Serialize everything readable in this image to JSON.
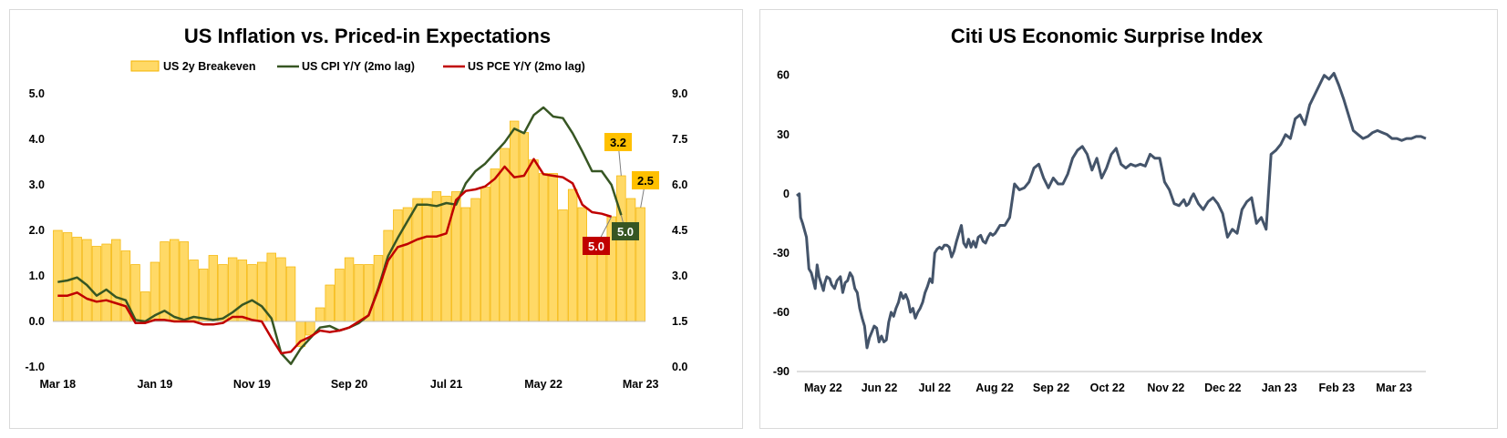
{
  "colors": {
    "bar_fill": "#FFD966",
    "bar_edge": "#F4B400",
    "cpi_line": "#375623",
    "pce_line": "#C00000",
    "surprise_line": "#44546A",
    "callout_be": "#FFC000",
    "callout_cpi": "#375623",
    "callout_pce": "#C00000"
  },
  "chart_data": [
    {
      "type": "bar",
      "title": "US Inflation vs. Priced-in Expectations",
      "legend": {
        "placement": "top",
        "entries": [
          "US 2y Breakeven",
          "US CPI Y/Y (2mo lag)",
          "US PCE Y/Y (2mo lag)"
        ]
      },
      "x_tick_labels": [
        "Mar 18",
        "Jan 19",
        "Nov 19",
        "Sep 20",
        "Jul 21",
        "May 22",
        "Mar 23"
      ],
      "y_left": {
        "lim": [
          -1.0,
          5.0
        ],
        "ticks": [
          "5.0",
          "4.0",
          "3.0",
          "2.0",
          "1.0",
          "0.0",
          "-1.0"
        ]
      },
      "y_right": {
        "lim": [
          0.0,
          9.0
        ],
        "ticks": [
          "9.0",
          "7.5",
          "6.0",
          "4.5",
          "3.0",
          "1.5",
          "0.0"
        ]
      },
      "series": [
        {
          "name": "US 2y Breakeven",
          "type": "bar",
          "axis": "left",
          "values": [
            2.0,
            1.95,
            1.85,
            1.8,
            1.65,
            1.7,
            1.8,
            1.55,
            1.25,
            0.65,
            1.3,
            1.75,
            1.8,
            1.75,
            1.35,
            1.15,
            1.45,
            1.25,
            1.4,
            1.35,
            1.25,
            1.3,
            1.5,
            1.4,
            1.2,
            -0.55,
            -0.3,
            0.3,
            0.8,
            1.15,
            1.4,
            1.25,
            1.25,
            1.45,
            2.0,
            2.45,
            2.5,
            2.7,
            2.7,
            2.85,
            2.75,
            2.85,
            2.5,
            2.7,
            2.95,
            3.35,
            3.8,
            4.4,
            4.15,
            3.55,
            3.25,
            3.25,
            2.45,
            2.9,
            2.5,
            1.65,
            1.65,
            2.3,
            3.2,
            2.7,
            2.5
          ]
        },
        {
          "name": "US CPI Y/Y (2mo lag)",
          "type": "line",
          "axis": "right",
          "values": [
            2.8,
            2.85,
            2.95,
            2.7,
            2.35,
            2.55,
            2.3,
            2.2,
            1.55,
            1.5,
            1.7,
            1.85,
            1.65,
            1.55,
            1.65,
            1.6,
            1.55,
            1.6,
            1.8,
            2.05,
            2.2,
            2.0,
            1.6,
            0.45,
            0.1,
            0.6,
            0.95,
            1.3,
            1.35,
            1.2,
            1.3,
            1.45,
            1.7,
            2.6,
            3.65,
            4.25,
            4.8,
            5.35,
            5.35,
            5.3,
            5.4,
            5.35,
            6.05,
            6.45,
            6.7,
            7.05,
            7.4,
            7.85,
            7.7,
            8.3,
            8.55,
            8.25,
            8.2,
            7.7,
            7.1,
            6.45,
            6.45,
            6.0,
            5.0
          ]
        },
        {
          "name": "US PCE Y/Y (2mo lag)",
          "type": "line",
          "axis": "right",
          "values": [
            2.35,
            2.35,
            2.45,
            2.25,
            2.15,
            2.2,
            2.1,
            2.0,
            1.45,
            1.45,
            1.55,
            1.55,
            1.5,
            1.5,
            1.5,
            1.4,
            1.4,
            1.45,
            1.65,
            1.65,
            1.55,
            1.5,
            0.95,
            0.45,
            0.5,
            0.85,
            1.0,
            1.2,
            1.15,
            1.2,
            1.3,
            1.5,
            1.7,
            2.55,
            3.5,
            3.95,
            4.05,
            4.2,
            4.3,
            4.3,
            4.4,
            5.5,
            5.8,
            5.85,
            5.95,
            6.2,
            6.6,
            6.25,
            6.3,
            6.85,
            6.35,
            6.3,
            6.25,
            6.05,
            5.35,
            5.1,
            5.05,
            4.95
          ]
        }
      ],
      "callouts": [
        {
          "label": "3.2",
          "series": "US 2y Breakeven"
        },
        {
          "label": "2.5",
          "series": "US 2y Breakeven"
        },
        {
          "label": "5.0",
          "series": "US CPI Y/Y (2mo lag)"
        },
        {
          "label": "5.0",
          "series": "US PCE Y/Y (2mo lag)"
        }
      ],
      "grid": false
    },
    {
      "type": "line",
      "title": "Citi US Economic Surprise Index",
      "x_tick_labels": [
        "May 22",
        "Jun 22",
        "Jul 22",
        "Aug 22",
        "Sep 22",
        "Oct 22",
        "Nov 22",
        "Dec 22",
        "Jan 23",
        "Feb 23",
        "Mar 23"
      ],
      "y_lim": [
        -90,
        70
      ],
      "y_ticks": [
        "60",
        "30",
        "0",
        "-30",
        "-60",
        "-90"
      ],
      "grid": false,
      "series": [
        {
          "x_months": [
            0.0,
            0.05,
            0.08,
            0.12,
            0.2,
            0.25,
            0.3,
            0.32,
            0.38,
            0.42,
            0.46,
            0.5,
            0.55,
            0.58,
            0.62,
            0.68,
            0.72,
            0.78,
            0.83,
            0.9,
            0.95,
            1.0,
            1.05,
            1.1,
            1.15,
            1.2,
            1.25,
            1.3,
            1.35,
            1.4,
            1.45,
            1.5,
            1.55,
            1.6,
            1.65,
            1.7,
            1.75,
            1.8,
            1.85,
            1.9,
            1.95,
            2.0,
            2.05,
            2.1,
            2.15,
            2.2,
            2.25,
            2.3,
            2.35,
            2.4,
            2.45,
            2.5,
            2.55,
            2.6,
            2.65,
            2.7,
            2.75,
            2.8,
            2.85,
            2.9,
            2.95,
            3.0,
            3.05,
            3.1,
            3.15,
            3.2,
            3.25,
            3.3,
            3.35,
            3.4,
            3.45,
            3.5,
            3.55,
            3.6,
            3.65,
            3.7,
            3.75,
            3.8,
            3.85,
            3.9,
            3.95,
            4.0,
            4.05,
            4.1,
            4.15,
            4.2,
            4.3,
            4.4,
            4.5,
            4.6,
            4.7,
            4.8,
            4.9,
            5.0,
            5.1,
            5.2,
            5.3,
            5.4,
            5.5,
            5.6,
            5.7,
            5.8,
            5.9,
            6.0,
            6.1,
            6.2,
            6.3,
            6.4,
            6.5,
            6.6,
            6.7,
            6.8,
            6.9,
            7.0,
            7.1,
            7.2,
            7.3,
            7.4,
            7.5,
            7.6,
            7.7,
            7.8,
            7.9,
            8.0,
            8.05,
            8.1,
            8.15,
            8.2,
            8.3,
            8.4,
            8.5,
            8.6,
            8.7,
            8.8,
            8.9,
            9.0,
            9.1,
            9.2,
            9.3,
            9.4,
            9.5,
            9.6,
            9.7,
            9.8,
            9.9,
            10.0,
            10.1,
            10.2,
            10.3,
            10.4,
            10.5,
            10.6,
            10.7,
            10.8,
            10.9,
            11.0,
            11.1,
            11.2,
            11.3,
            11.4,
            11.5,
            11.6,
            11.7,
            11.8,
            11.9,
            12.0,
            12.1,
            12.2,
            12.3,
            12.4,
            12.5,
            12.6,
            12.7,
            12.8,
            12.9,
            13.0
          ],
          "values": [
            -1,
            0,
            -12,
            -15,
            -22,
            -38,
            -40,
            -42,
            -48,
            -36,
            -42,
            -45,
            -49,
            -45,
            -42,
            -43,
            -46,
            -48,
            -44,
            -42,
            -50,
            -45,
            -44,
            -40,
            -42,
            -48,
            -50,
            -58,
            -63,
            -67,
            -78,
            -73,
            -70,
            -67,
            -68,
            -75,
            -72,
            -75,
            -74,
            -65,
            -60,
            -62,
            -58,
            -55,
            -50,
            -53,
            -51,
            -54,
            -60,
            -58,
            -63,
            -60,
            -58,
            -55,
            -50,
            -47,
            -43,
            -45,
            -30,
            -28,
            -27,
            -28,
            -26,
            -26,
            -27,
            -32,
            -29,
            -24,
            -20,
            -16,
            -25,
            -27,
            -23,
            -27,
            -24,
            -27,
            -22,
            -21,
            -24,
            -25,
            -22,
            -20,
            -21,
            -20,
            -18,
            -16,
            -16,
            -12,
            5,
            2,
            3,
            6,
            13,
            15,
            8,
            3,
            8,
            5,
            5,
            10,
            18,
            22,
            24,
            20,
            12,
            18,
            8,
            13,
            20,
            23,
            15,
            13,
            15,
            14,
            15,
            14,
            20,
            18,
            18,
            6,
            2,
            -5,
            -6,
            -3,
            -6,
            -5,
            -2,
            0,
            -5,
            -8,
            -4,
            -2,
            -5,
            -10,
            -22,
            -18,
            -20,
            -8,
            -4,
            -2,
            -15,
            -12,
            -18,
            20,
            22,
            25,
            30,
            28,
            38,
            40,
            35,
            45,
            50,
            55,
            60,
            58,
            61,
            55,
            48,
            40,
            32,
            30,
            28,
            29,
            31,
            32,
            31,
            30,
            28,
            28,
            27,
            28,
            28,
            29,
            29,
            28
          ]
        }
      ]
    }
  ]
}
